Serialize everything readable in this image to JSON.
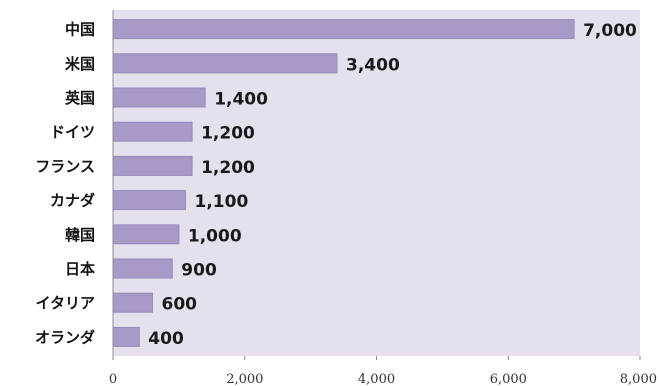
{
  "chart_data": {
    "type": "bar",
    "orientation": "horizontal",
    "categories": [
      "中国",
      "米国",
      "英国",
      "ドイツ",
      "フランス",
      "カナダ",
      "韓国",
      "日本",
      "イタリア",
      "オランダ"
    ],
    "values": [
      7000,
      3400,
      1400,
      1200,
      1200,
      1100,
      1000,
      900,
      600,
      400
    ],
    "value_labels": [
      "7,000",
      "3,400",
      "1,400",
      "1,200",
      "1,200",
      "1,100",
      "1,000",
      "900",
      "600",
      "400"
    ],
    "xticks": [
      0,
      2000,
      4000,
      6000,
      8000
    ],
    "xtick_labels": [
      "0",
      "2,000",
      "4,000",
      "6,000",
      "8,000"
    ],
    "xlim": [
      0,
      8000
    ],
    "grid": false,
    "colors": {
      "bar": "#a899c7",
      "bar_edge": "#958abd",
      "plot_bg": "#e6e0ee",
      "axis": "#8c8c8c"
    }
  }
}
